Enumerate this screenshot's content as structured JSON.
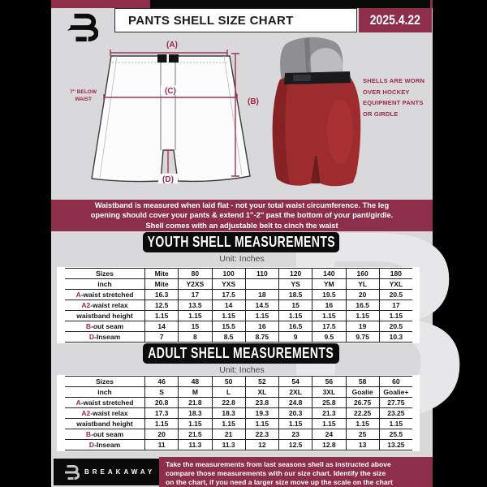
{
  "header": {
    "title": "PANTS SHELL SIZE CHART",
    "date": "2025.4.22"
  },
  "diagram": {
    "label_a": "(A)",
    "label_b": "(B)",
    "label_c": "(C)",
    "label_d": "(D)",
    "waist_note": [
      "7'' BELOW",
      "WAIST"
    ],
    "shell_note": [
      "SHELLS ARE WORN",
      "OVER HOCKEY",
      "EQUIPMENT PANTS",
      "OR GIRDLE"
    ]
  },
  "notice_band": {
    "lines": [
      "Waistband is measured when laid flat - not your total waist circumference. The leg",
      "opening should cover your pants & extend 1''-2'' past the bottom of your pant/girdle.",
      "Shell comes with an adjustable belt to cinch the waist"
    ]
  },
  "youth": {
    "title": "YOUTH SHELL MEASUREMENTS",
    "unit": "Unit: Inches",
    "table": {
      "rows": [
        {
          "prefix": "",
          "label": "Sizes",
          "cells": [
            "Mite",
            "80",
            "100",
            "110",
            "120",
            "140",
            "160",
            "180"
          ]
        },
        {
          "prefix": "",
          "label": "inch",
          "cells": [
            "Mite",
            "Y2XS",
            "YXS",
            "",
            "YS",
            "YM",
            "YL",
            "YXL"
          ]
        },
        {
          "prefix": "A",
          "label": "-waist stretched",
          "cells": [
            "16.3",
            "17",
            "17.5",
            "18",
            "18.5",
            "19.5",
            "20",
            "20.5"
          ]
        },
        {
          "prefix": "A2",
          "label": "-waist relax",
          "cells": [
            "12.5",
            "13.5",
            "14",
            "14.5",
            "15",
            "16",
            "16.5",
            "17"
          ]
        },
        {
          "prefix": "",
          "label": "waistband height",
          "cells": [
            "1.15",
            "1.15",
            "1.15",
            "1.15",
            "1.15",
            "1.15",
            "1.15",
            "1.15"
          ]
        },
        {
          "prefix": "B",
          "label": "-out seam",
          "cells": [
            "14",
            "15",
            "15.5",
            "16",
            "16.5",
            "17.5",
            "19",
            "20.5"
          ]
        },
        {
          "prefix": "D",
          "label": "-Inseam",
          "cells": [
            "7",
            "8",
            "8.5",
            "8.75",
            "9",
            "9.5",
            "9.75",
            "10.3"
          ]
        }
      ]
    }
  },
  "adult": {
    "title": "ADULT SHELL MEASUREMENTS",
    "unit": "Unit: Inches",
    "table": {
      "rows": [
        {
          "prefix": "",
          "label": "Sizes",
          "cells": [
            "46",
            "48",
            "50",
            "52",
            "54",
            "56",
            "58",
            "60"
          ]
        },
        {
          "prefix": "",
          "label": "inch",
          "cells": [
            "S",
            "M",
            "L",
            "XL",
            "2XL",
            "3XL",
            "Goalie",
            "Goalie+"
          ]
        },
        {
          "prefix": "A",
          "label": "-waist stretched",
          "cells": [
            "20.8",
            "21.8",
            "22.8",
            "23.8",
            "24.8",
            "25.8",
            "26.75",
            "27.75"
          ]
        },
        {
          "prefix": "A2",
          "label": "-waist relax",
          "cells": [
            "17.3",
            "18.3",
            "18.3",
            "19.3",
            "20.3",
            "21.3",
            "22.25",
            "23.25"
          ]
        },
        {
          "prefix": "",
          "label": "waistband height",
          "cells": [
            "1.15",
            "1.15",
            "1.15",
            "1.15",
            "1.15",
            "1.15",
            "1.15",
            "1.15"
          ]
        },
        {
          "prefix": "B",
          "label": "-out seam",
          "cells": [
            "20",
            "21.5",
            "21",
            "22.3",
            "23",
            "24",
            "25",
            "25.5"
          ]
        },
        {
          "prefix": "D",
          "label": "-Inseam",
          "cells": [
            "11",
            "11.3",
            "11.3",
            "12",
            "12.5",
            "12.8",
            "13",
            "13.25"
          ]
        }
      ]
    }
  },
  "footer": {
    "brand": "BREAKAWAY",
    "lines": [
      "Take the measurements from last seasons shell as instructed above",
      "compare those measurements  with our size chart. Identify the size",
      "on the chart, if you need a larger size move up the scale on the chart"
    ]
  },
  "colors": {
    "maroon": "#8d2e4a",
    "accent": "#9b2948",
    "shell_red": "#9e2b2d",
    "background": "#d9d9db"
  }
}
